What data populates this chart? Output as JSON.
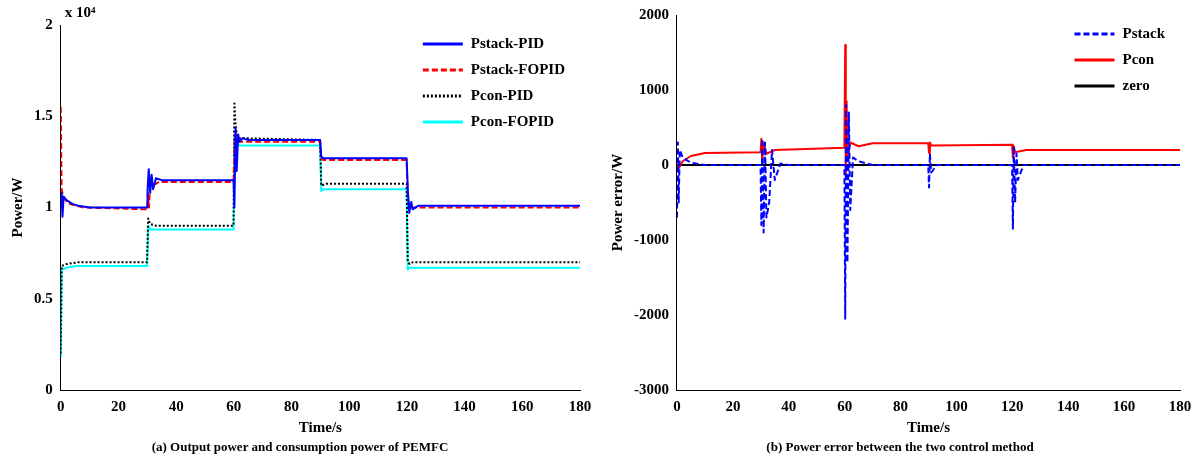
{
  "chart_data": [
    {
      "type": "line",
      "xlabel": "Time/s",
      "ylabel": "Power/W",
      "xlim": [
        0,
        180
      ],
      "xticks": [
        0,
        20,
        40,
        60,
        80,
        100,
        120,
        140,
        160,
        180
      ],
      "ylim": [
        0,
        2
      ],
      "yticks": [
        0,
        0.5,
        1,
        1.5,
        2
      ],
      "grid": false,
      "legend": "top right",
      "marker": "none",
      "annotations": [
        "x 10⁴",
        "(a) Output power and consumption power of PEMFC"
      ],
      "series": [
        {
          "name": "Pstack-PID",
          "color": "#0000ff",
          "line_style": "solid",
          "x": [
            0,
            0.3,
            0.6,
            1,
            2,
            4,
            6,
            10,
            29.9,
            30.1,
            30.5,
            31,
            31.5,
            32,
            33,
            35,
            40,
            59.9,
            60.2,
            60.6,
            61,
            61.5,
            62,
            63,
            65,
            89.9,
            90.3,
            91,
            92,
            95,
            119.9,
            120.3,
            120.8,
            121.5,
            122,
            124,
            130,
            180
          ],
          "values": [
            1.0,
            1.08,
            0.95,
            1.06,
            1.04,
            1.02,
            1.01,
            1.0,
            1.0,
            1.1,
            1.21,
            1.08,
            1.18,
            1.1,
            1.16,
            1.15,
            1.15,
            1.15,
            1.0,
            1.44,
            1.2,
            1.4,
            1.36,
            1.38,
            1.37,
            1.37,
            1.28,
            1.27,
            1.27,
            1.27,
            1.27,
            1.1,
            0.97,
            1.03,
            0.99,
            1.01,
            1.01,
            1.01
          ]
        },
        {
          "name": "Pstack-FOPID",
          "color": "#ff0000",
          "line_style": "dashed",
          "x": [
            0,
            0.3,
            1,
            3,
            8,
            29.9,
            30.2,
            30.6,
            31,
            32,
            34,
            59.9,
            60.3,
            61,
            62,
            89.9,
            90.3,
            91,
            119.9,
            120.3,
            121,
            180
          ],
          "values": [
            1.55,
            1.1,
            1.05,
            1.02,
            1.0,
            0.99,
            1.08,
            1.0,
            1.15,
            1.12,
            1.14,
            1.14,
            1.4,
            1.37,
            1.36,
            1.36,
            1.27,
            1.26,
            1.26,
            1.05,
            1.0,
            1.0
          ]
        },
        {
          "name": "Pcon-PID",
          "color": "#000000",
          "line_style": "dotted",
          "x": [
            0,
            0.3,
            2,
            6,
            29.9,
            30.3,
            31,
            33,
            59.9,
            60.2,
            60.6,
            61,
            62,
            89.9,
            90.3,
            92,
            119.9,
            120.3,
            121,
            122,
            180
          ],
          "values": [
            0.2,
            0.68,
            0.69,
            0.7,
            0.7,
            0.94,
            0.91,
            0.9,
            0.9,
            1.57,
            1.45,
            1.4,
            1.38,
            1.37,
            1.12,
            1.13,
            1.13,
            0.7,
            0.69,
            0.7,
            0.7
          ]
        },
        {
          "name": "Pcon-FOPID",
          "color": "#00ffff",
          "line_style": "solid",
          "x": [
            0,
            0.3,
            2,
            5,
            29.9,
            30.4,
            31,
            59.9,
            60.3,
            61,
            62,
            89.9,
            90.3,
            91,
            119.9,
            120.3,
            121,
            180
          ],
          "values": [
            0.18,
            0.66,
            0.67,
            0.68,
            0.68,
            0.9,
            0.88,
            0.88,
            1.4,
            1.35,
            1.34,
            1.34,
            1.09,
            1.1,
            1.1,
            0.66,
            0.67,
            0.67
          ]
        }
      ]
    },
    {
      "type": "line",
      "xlabel": "Time/s",
      "ylabel": "Power error/W",
      "xlim": [
        0,
        180
      ],
      "xticks": [
        0,
        20,
        40,
        60,
        80,
        100,
        120,
        140,
        160,
        180
      ],
      "ylim": [
        -3000,
        2000
      ],
      "yticks": [
        -3000,
        -2000,
        -1000,
        0,
        1000,
        2000
      ],
      "grid": false,
      "legend": "top right",
      "marker": "none",
      "annotations": [
        "(b) Power error between the two control method"
      ],
      "series": [
        {
          "name": "Pstack",
          "color": "#0000ff",
          "line_style": "dashed",
          "x": [
            0,
            0.3,
            0.6,
            1,
            2,
            5,
            10,
            29.9,
            30.2,
            30.5,
            31,
            31.5,
            32,
            33,
            34,
            35,
            37,
            40,
            59.9,
            60.2,
            60.5,
            61,
            61.5,
            62,
            63,
            65,
            70,
            89.9,
            90.2,
            90.5,
            91,
            93,
            119.9,
            120.2,
            120.5,
            121,
            121.5,
            122,
            124,
            180
          ],
          "values": [
            -700,
            300,
            -500,
            200,
            100,
            30,
            0,
            0,
            -800,
            350,
            -900,
            300,
            -700,
            -500,
            200,
            -200,
            20,
            0,
            0,
            -2050,
            800,
            -1300,
            700,
            -600,
            100,
            50,
            0,
            0,
            -300,
            150,
            -100,
            0,
            0,
            -850,
            250,
            -500,
            150,
            -200,
            0,
            0
          ]
        },
        {
          "name": "Pcon",
          "color": "#ff0000",
          "line_style": "solid",
          "x": [
            0,
            0.5,
            2,
            5,
            10,
            29.9,
            30.2,
            30.5,
            31,
            32,
            35,
            59.9,
            60.2,
            60.4,
            60.7,
            61,
            62,
            65,
            70,
            89.9,
            90.2,
            90.5,
            91,
            119.9,
            120.2,
            120.5,
            121,
            125,
            180
          ],
          "values": [
            0,
            -50,
            50,
            120,
            160,
            170,
            350,
            50,
            300,
            150,
            200,
            230,
            1600,
            -150,
            850,
            100,
            300,
            250,
            290,
            290,
            160,
            300,
            260,
            270,
            100,
            250,
            170,
            200,
            200
          ]
        },
        {
          "name": "zero",
          "color": "#000000",
          "line_style": "solid",
          "x": [
            0,
            180
          ],
          "values": [
            0,
            0
          ]
        }
      ]
    }
  ]
}
